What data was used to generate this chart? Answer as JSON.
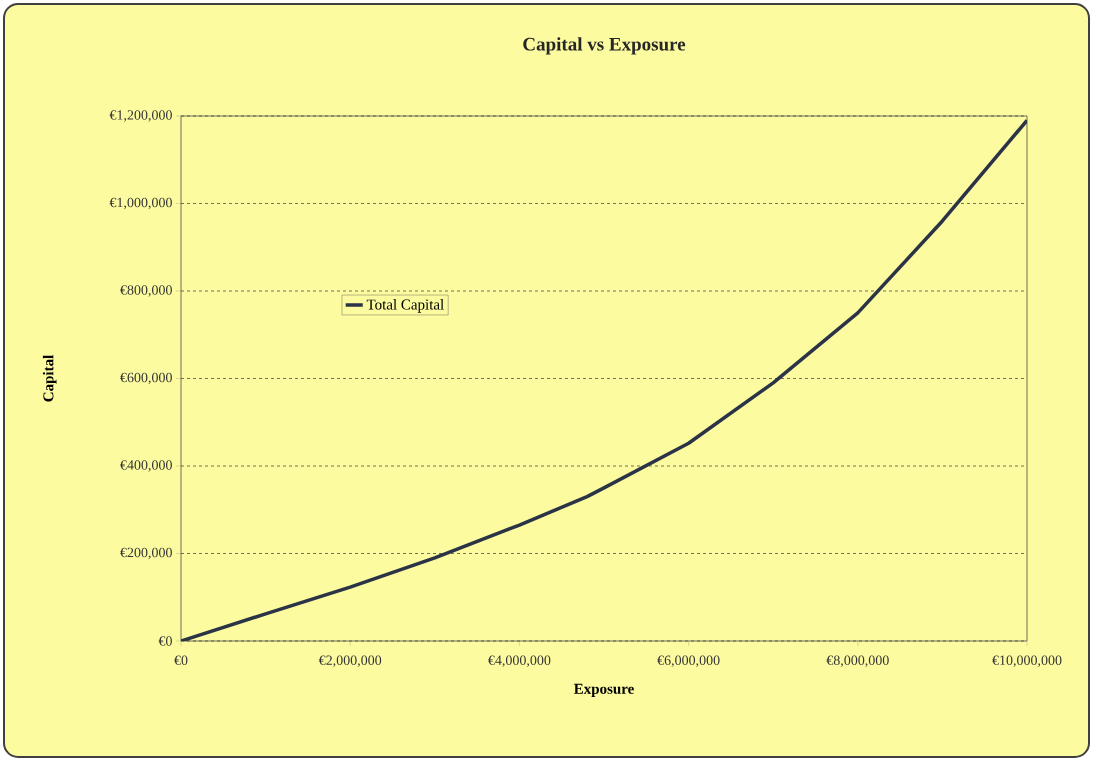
{
  "chart_data": {
    "type": "line",
    "title": "Capital vs Exposure",
    "xlabel": "Exposure",
    "ylabel": "Capital",
    "x": [
      0,
      1000000,
      2000000,
      3000000,
      4000000,
      4800000,
      5000000,
      6000000,
      7000000,
      8000000,
      9000000,
      10000000
    ],
    "series": [
      {
        "name": "Total Capital",
        "color": "#2b3347",
        "values": [
          0,
          62000,
          123000,
          190000,
          265000,
          330000,
          350000,
          452000,
          590000,
          750000,
          960000,
          1190000
        ]
      }
    ],
    "xlim": [
      0,
      10000000
    ],
    "ylim": [
      0,
      1200000
    ],
    "xticks": [
      {
        "value": 0,
        "label": "€0"
      },
      {
        "value": 2000000,
        "label": "€2,000,000"
      },
      {
        "value": 4000000,
        "label": "€4,000,000"
      },
      {
        "value": 6000000,
        "label": "€6,000,000"
      },
      {
        "value": 8000000,
        "label": "€8,000,000"
      },
      {
        "value": 10000000,
        "label": "€10,000,000"
      }
    ],
    "yticks": [
      {
        "value": 0,
        "label": "€0"
      },
      {
        "value": 200000,
        "label": "€200,000"
      },
      {
        "value": 400000,
        "label": "€400,000"
      },
      {
        "value": 600000,
        "label": "€600,000"
      },
      {
        "value": 800000,
        "label": "€800,000"
      },
      {
        "value": 1000000,
        "label": "€1,000,000"
      },
      {
        "value": 1200000,
        "label": "€1,200,000"
      }
    ],
    "grid": "y",
    "legend": "left",
    "marker": "none",
    "line_style": "solid"
  }
}
